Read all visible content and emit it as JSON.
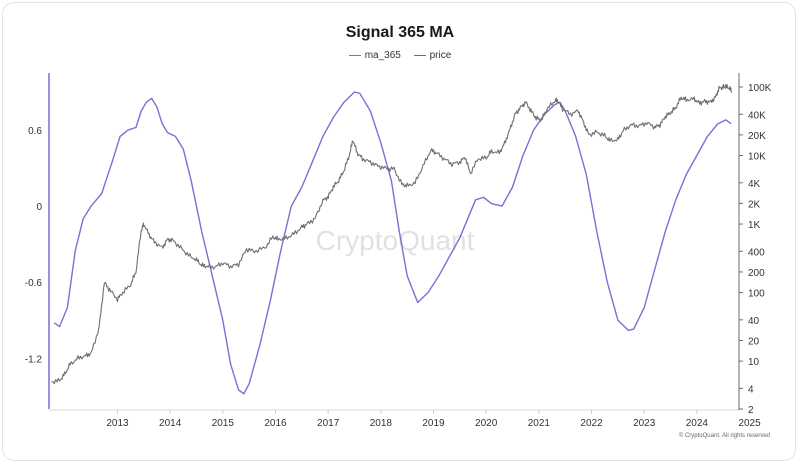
{
  "chart_data": {
    "type": "line",
    "title": "Signal 365 MA",
    "legend_position": "top-center",
    "grid": false,
    "x_ticks": [
      "2013",
      "2014",
      "2015",
      "2016",
      "2017",
      "2018",
      "2019",
      "2020",
      "2021",
      "2022",
      "2023",
      "2024",
      "2025"
    ],
    "y_left": {
      "ticks": [
        0.6,
        0,
        -0.6,
        -1.2
      ],
      "ylim": [
        -1.6,
        1.05
      ]
    },
    "y_right": {
      "scale": "log",
      "ticks": [
        100000,
        40000,
        20000,
        10000,
        4000,
        2000,
        1000,
        400,
        200,
        100,
        40,
        20,
        10,
        4,
        2
      ],
      "tick_labels": [
        "100K",
        "40K",
        "20K",
        "10K",
        "4K",
        "2K",
        "1K",
        "400",
        "200",
        "100",
        "40",
        "20",
        "10",
        "4",
        "2"
      ],
      "ylim": [
        2,
        160000
      ]
    },
    "series": [
      {
        "name": "ma_365",
        "axis": "left",
        "color": "#7b6fd6",
        "points": [
          [
            2012.3,
            -0.92
          ],
          [
            2012.4,
            -0.95
          ],
          [
            2012.55,
            -0.8
          ],
          [
            2012.7,
            -0.35
          ],
          [
            2012.85,
            -0.1
          ],
          [
            2013.0,
            0.0
          ],
          [
            2013.2,
            0.1
          ],
          [
            2013.4,
            0.35
          ],
          [
            2013.55,
            0.55
          ],
          [
            2013.7,
            0.6
          ],
          [
            2013.85,
            0.62
          ],
          [
            2013.95,
            0.75
          ],
          [
            2014.05,
            0.82
          ],
          [
            2014.15,
            0.85
          ],
          [
            2014.25,
            0.78
          ],
          [
            2014.35,
            0.65
          ],
          [
            2014.45,
            0.58
          ],
          [
            2014.6,
            0.55
          ],
          [
            2014.75,
            0.45
          ],
          [
            2014.9,
            0.2
          ],
          [
            2015.1,
            -0.2
          ],
          [
            2015.3,
            -0.55
          ],
          [
            2015.5,
            -0.9
          ],
          [
            2015.65,
            -1.25
          ],
          [
            2015.8,
            -1.45
          ],
          [
            2015.9,
            -1.48
          ],
          [
            2016.0,
            -1.4
          ],
          [
            2016.2,
            -1.1
          ],
          [
            2016.4,
            -0.75
          ],
          [
            2016.6,
            -0.35
          ],
          [
            2016.8,
            0.0
          ],
          [
            2017.0,
            0.15
          ],
          [
            2017.2,
            0.35
          ],
          [
            2017.4,
            0.55
          ],
          [
            2017.6,
            0.7
          ],
          [
            2017.8,
            0.82
          ],
          [
            2018.0,
            0.9
          ],
          [
            2018.1,
            0.89
          ],
          [
            2018.3,
            0.75
          ],
          [
            2018.5,
            0.5
          ],
          [
            2018.7,
            0.2
          ],
          [
            2018.85,
            -0.2
          ],
          [
            2019.0,
            -0.55
          ],
          [
            2019.2,
            -0.76
          ],
          [
            2019.4,
            -0.68
          ],
          [
            2019.6,
            -0.55
          ],
          [
            2019.8,
            -0.4
          ],
          [
            2020.0,
            -0.25
          ],
          [
            2020.15,
            -0.1
          ],
          [
            2020.3,
            0.05
          ],
          [
            2020.45,
            0.07
          ],
          [
            2020.6,
            0.02
          ],
          [
            2020.8,
            0.0
          ],
          [
            2021.0,
            0.15
          ],
          [
            2021.2,
            0.4
          ],
          [
            2021.4,
            0.6
          ],
          [
            2021.6,
            0.72
          ],
          [
            2021.8,
            0.8
          ],
          [
            2021.9,
            0.82
          ],
          [
            2022.0,
            0.75
          ],
          [
            2022.2,
            0.55
          ],
          [
            2022.4,
            0.25
          ],
          [
            2022.6,
            -0.2
          ],
          [
            2022.8,
            -0.6
          ],
          [
            2023.0,
            -0.9
          ],
          [
            2023.2,
            -0.98
          ],
          [
            2023.3,
            -0.97
          ],
          [
            2023.5,
            -0.8
          ],
          [
            2023.7,
            -0.5
          ],
          [
            2023.9,
            -0.2
          ],
          [
            2024.1,
            0.05
          ],
          [
            2024.3,
            0.25
          ],
          [
            2024.5,
            0.4
          ],
          [
            2024.7,
            0.55
          ],
          [
            2024.9,
            0.65
          ],
          [
            2025.05,
            0.68
          ],
          [
            2025.15,
            0.65
          ]
        ]
      },
      {
        "name": "price",
        "axis": "right",
        "color": "#6e6e6e",
        "points": [
          [
            2012.25,
            5
          ],
          [
            2012.4,
            5.2
          ],
          [
            2012.5,
            6.5
          ],
          [
            2012.6,
            9
          ],
          [
            2012.75,
            11
          ],
          [
            2012.9,
            12
          ],
          [
            2013.0,
            13
          ],
          [
            2013.15,
            30
          ],
          [
            2013.25,
            140
          ],
          [
            2013.35,
            110
          ],
          [
            2013.5,
            80
          ],
          [
            2013.6,
            100
          ],
          [
            2013.75,
            130
          ],
          [
            2013.85,
            200
          ],
          [
            2013.95,
            800
          ],
          [
            2014.0,
            1000
          ],
          [
            2014.1,
            700
          ],
          [
            2014.2,
            550
          ],
          [
            2014.35,
            450
          ],
          [
            2014.45,
            600
          ],
          [
            2014.55,
            580
          ],
          [
            2014.7,
            450
          ],
          [
            2014.85,
            350
          ],
          [
            2015.0,
            300
          ],
          [
            2015.1,
            250
          ],
          [
            2015.2,
            240
          ],
          [
            2015.35,
            235
          ],
          [
            2015.5,
            270
          ],
          [
            2015.65,
            240
          ],
          [
            2015.8,
            260
          ],
          [
            2015.95,
            430
          ],
          [
            2016.1,
            400
          ],
          [
            2016.3,
            450
          ],
          [
            2016.45,
            650
          ],
          [
            2016.55,
            600
          ],
          [
            2016.7,
            620
          ],
          [
            2016.85,
            720
          ],
          [
            2017.0,
            900
          ],
          [
            2017.1,
            1000
          ],
          [
            2017.25,
            1200
          ],
          [
            2017.4,
            2200
          ],
          [
            2017.5,
            2500
          ],
          [
            2017.6,
            3500
          ],
          [
            2017.7,
            4300
          ],
          [
            2017.8,
            6000
          ],
          [
            2017.9,
            10000
          ],
          [
            2017.97,
            17000
          ],
          [
            2018.05,
            11000
          ],
          [
            2018.15,
            9000
          ],
          [
            2018.3,
            8000
          ],
          [
            2018.45,
            7000
          ],
          [
            2018.6,
            6500
          ],
          [
            2018.75,
            6400
          ],
          [
            2018.9,
            3800
          ],
          [
            2019.0,
            3600
          ],
          [
            2019.15,
            4000
          ],
          [
            2019.3,
            7000
          ],
          [
            2019.45,
            12000
          ],
          [
            2019.55,
            11000
          ],
          [
            2019.7,
            9000
          ],
          [
            2019.85,
            7500
          ],
          [
            2020.0,
            8000
          ],
          [
            2020.1,
            9500
          ],
          [
            2020.2,
            5500
          ],
          [
            2020.35,
            9000
          ],
          [
            2020.5,
            9200
          ],
          [
            2020.6,
            11500
          ],
          [
            2020.75,
            11000
          ],
          [
            2020.85,
            15000
          ],
          [
            2020.95,
            24000
          ],
          [
            2021.05,
            40000
          ],
          [
            2021.15,
            50000
          ],
          [
            2021.25,
            60000
          ],
          [
            2021.35,
            45000
          ],
          [
            2021.45,
            35000
          ],
          [
            2021.55,
            33000
          ],
          [
            2021.65,
            47000
          ],
          [
            2021.8,
            62000
          ],
          [
            2021.85,
            65000
          ],
          [
            2021.95,
            48000
          ],
          [
            2022.1,
            40000
          ],
          [
            2022.25,
            45000
          ],
          [
            2022.35,
            30000
          ],
          [
            2022.45,
            20000
          ],
          [
            2022.6,
            22000
          ],
          [
            2022.75,
            19500
          ],
          [
            2022.85,
            16500
          ],
          [
            2023.0,
            17000
          ],
          [
            2023.1,
            23000
          ],
          [
            2023.25,
            28000
          ],
          [
            2023.4,
            27000
          ],
          [
            2023.55,
            30000
          ],
          [
            2023.7,
            26000
          ],
          [
            2023.8,
            28000
          ],
          [
            2023.9,
            37000
          ],
          [
            2024.0,
            42000
          ],
          [
            2024.1,
            50000
          ],
          [
            2024.2,
            70000
          ],
          [
            2024.3,
            65000
          ],
          [
            2024.45,
            67000
          ],
          [
            2024.55,
            58000
          ],
          [
            2024.65,
            62000
          ],
          [
            2024.75,
            60000
          ],
          [
            2024.85,
            70000
          ],
          [
            2024.92,
            95000
          ],
          [
            2025.0,
            100000
          ],
          [
            2025.05,
            102000
          ],
          [
            2025.12,
            96000
          ],
          [
            2025.17,
            85000
          ]
        ]
      }
    ]
  },
  "watermark": "CryptoQuant",
  "footer": "© CryptoQuant. All rights reserved"
}
